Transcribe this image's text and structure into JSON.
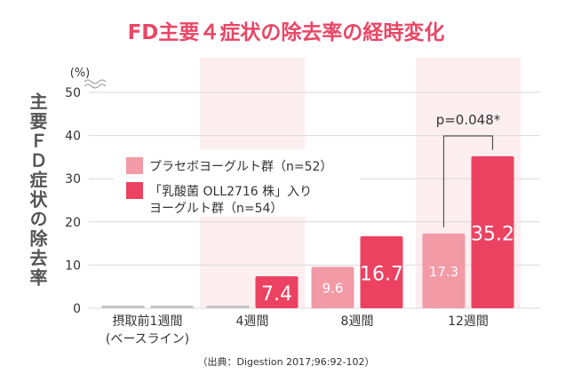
{
  "chart_data": {
    "type": "bar",
    "title": "FD主要４症状の除去率の経時変化",
    "ylabel": "主要ＦＤ症状の除去率",
    "y_unit": "(%)",
    "ylim": [
      0,
      50
    ],
    "yticks": [
      0,
      10,
      20,
      30,
      40,
      50
    ],
    "categories": [
      {
        "line1": "摂取前1週間",
        "line2": "(ベースライン)"
      },
      {
        "line1": "4週間",
        "line2": ""
      },
      {
        "line1": "8週間",
        "line2": ""
      },
      {
        "line1": "12週間",
        "line2": ""
      }
    ],
    "series": [
      {
        "name": "プラセボヨーグルト群（n=52）",
        "name_lines": [
          "プラセボヨーグルト群（n=52）"
        ],
        "values": [
          0,
          0,
          9.6,
          17.3
        ],
        "labels": [
          "",
          "",
          "9.6",
          "17.3"
        ]
      },
      {
        "name": "「乳酸菌 OLL2716 株」入りヨーグルト群（n=54）",
        "name_lines": [
          "「乳酸菌 OLL2716 株」入り",
          "ヨーグルト群（n=54）"
        ],
        "values": [
          0,
          7.4,
          16.7,
          35.2
        ],
        "labels": [
          "",
          "7.4",
          "16.7",
          "35.2"
        ]
      }
    ],
    "annotation": "p=0.048*",
    "grid": true,
    "legend_position": "middle-left",
    "source": "（出典：Digestion 2017;96:92-102）",
    "colors": {
      "title": "#e94766",
      "placebo": "#f29aa6",
      "probiotic": "#ec4261",
      "baseline": "#c4c4c4",
      "band": "#fdeef0",
      "grid": "#d9d9d9",
      "axis_text": "#333333",
      "ylabel": "#555555",
      "legend_bg": "#ffffff"
    }
  }
}
